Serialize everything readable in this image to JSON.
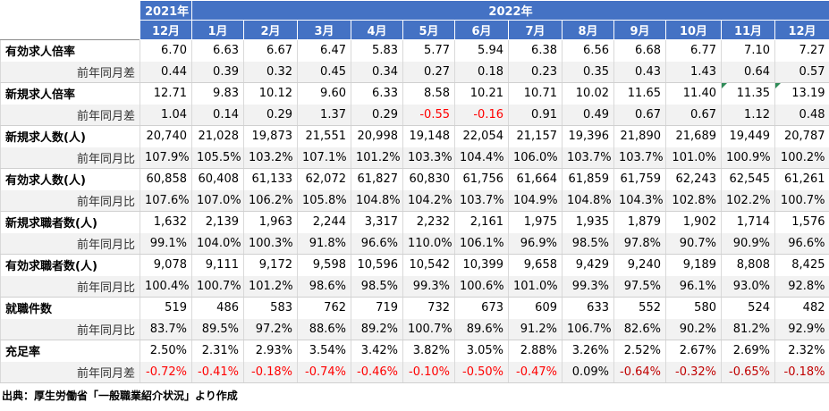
{
  "header": {
    "year_2021": "2021年",
    "year_2022": "2022年",
    "months": [
      "12月",
      "1月",
      "2月",
      "3月",
      "4月",
      "5月",
      "6月",
      "7月",
      "8月",
      "9月",
      "10月",
      "11月",
      "12月"
    ]
  },
  "rows": [
    {
      "label": "有効求人倍率",
      "values": [
        "6.70",
        "6.63",
        "6.67",
        "6.47",
        "5.83",
        "5.77",
        "5.94",
        "6.38",
        "6.56",
        "6.68",
        "6.77",
        "7.10",
        "7.27"
      ],
      "sub_label": "前年同月差",
      "sub_values": [
        "0.44",
        "0.39",
        "0.32",
        "0.45",
        "0.34",
        "0.27",
        "0.18",
        "0.23",
        "0.35",
        "0.43",
        "1.43",
        "0.64",
        "0.57"
      ]
    },
    {
      "label": "新規求人倍率",
      "values": [
        "12.71",
        "9.83",
        "10.12",
        "9.60",
        "6.33",
        "8.58",
        "10.21",
        "10.71",
        "10.02",
        "11.65",
        "11.40",
        "11.35",
        "13.19"
      ],
      "sub_label": "前年同月差",
      "sub_values": [
        "1.04",
        "0.14",
        "0.29",
        "1.37",
        "0.29",
        "-0.55",
        "-0.16",
        "0.91",
        "0.49",
        "0.67",
        "0.67",
        "1.12",
        "0.48"
      ]
    },
    {
      "label": "新規求人数(人)",
      "values": [
        "20,740",
        "21,028",
        "19,873",
        "21,551",
        "20,998",
        "19,148",
        "22,054",
        "21,157",
        "19,396",
        "21,890",
        "21,689",
        "19,449",
        "20,787"
      ],
      "sub_label": "前年同月比",
      "sub_values": [
        "107.9%",
        "105.5%",
        "103.2%",
        "107.1%",
        "101.2%",
        "103.3%",
        "104.4%",
        "106.0%",
        "103.7%",
        "103.7%",
        "101.0%",
        "100.9%",
        "100.2%"
      ]
    },
    {
      "label": "有効求人数(人)",
      "values": [
        "60,858",
        "60,408",
        "61,133",
        "62,072",
        "61,827",
        "60,830",
        "61,756",
        "61,664",
        "61,859",
        "61,759",
        "62,243",
        "62,545",
        "61,261"
      ],
      "sub_label": "前年同月比",
      "sub_values": [
        "107.6%",
        "107.0%",
        "106.2%",
        "105.8%",
        "104.8%",
        "104.2%",
        "103.7%",
        "104.9%",
        "104.8%",
        "104.3%",
        "102.8%",
        "102.2%",
        "100.7%"
      ]
    },
    {
      "label": "新規求職者数(人)",
      "values": [
        "1,632",
        "2,139",
        "1,963",
        "2,244",
        "3,317",
        "2,232",
        "2,161",
        "1,975",
        "1,935",
        "1,879",
        "1,902",
        "1,714",
        "1,576"
      ],
      "sub_label": "前年同月比",
      "sub_values": [
        "99.1%",
        "104.0%",
        "100.3%",
        "91.8%",
        "96.6%",
        "110.0%",
        "106.1%",
        "96.9%",
        "98.5%",
        "97.8%",
        "90.7%",
        "90.9%",
        "96.6%"
      ]
    },
    {
      "label": "有効求職者数(人)",
      "values": [
        "9,078",
        "9,111",
        "9,172",
        "9,598",
        "10,596",
        "10,542",
        "10,399",
        "9,658",
        "9,429",
        "9,240",
        "9,189",
        "8,808",
        "8,425"
      ],
      "sub_label": "前年同月比",
      "sub_values": [
        "100.4%",
        "100.7%",
        "101.2%",
        "98.6%",
        "98.5%",
        "99.3%",
        "100.6%",
        "101.0%",
        "99.3%",
        "97.5%",
        "96.1%",
        "93.0%",
        "92.8%"
      ]
    },
    {
      "label": "就職件数",
      "values": [
        "519",
        "486",
        "583",
        "762",
        "719",
        "732",
        "673",
        "609",
        "633",
        "552",
        "580",
        "524",
        "482"
      ],
      "sub_label": "前年同月比",
      "sub_values": [
        "83.7%",
        "89.5%",
        "97.2%",
        "88.6%",
        "89.2%",
        "100.7%",
        "89.6%",
        "91.2%",
        "106.7%",
        "82.6%",
        "90.2%",
        "81.2%",
        "92.9%"
      ]
    },
    {
      "label": "充足率",
      "values": [
        "2.50%",
        "2.31%",
        "2.93%",
        "3.54%",
        "3.42%",
        "3.82%",
        "3.05%",
        "2.88%",
        "3.26%",
        "2.52%",
        "2.67%",
        "2.69%",
        "2.32%"
      ],
      "sub_label": "前年同月差",
      "sub_values": [
        "-0.72%",
        "-0.41%",
        "-0.18%",
        "-0.74%",
        "-0.46%",
        "-0.10%",
        "-0.50%",
        "-0.47%",
        "0.09%",
        "-0.64%",
        "-0.32%",
        "-0.65%",
        "-0.18%"
      ]
    }
  ],
  "source": "出典：厚生労働省「一般職業紹介状況」より作成",
  "colors": {
    "header_bg": "#4472c4",
    "negative_red": "#ff0000",
    "negative_dark": "#c00000",
    "sub_row_bg": "#f2f2f2"
  }
}
